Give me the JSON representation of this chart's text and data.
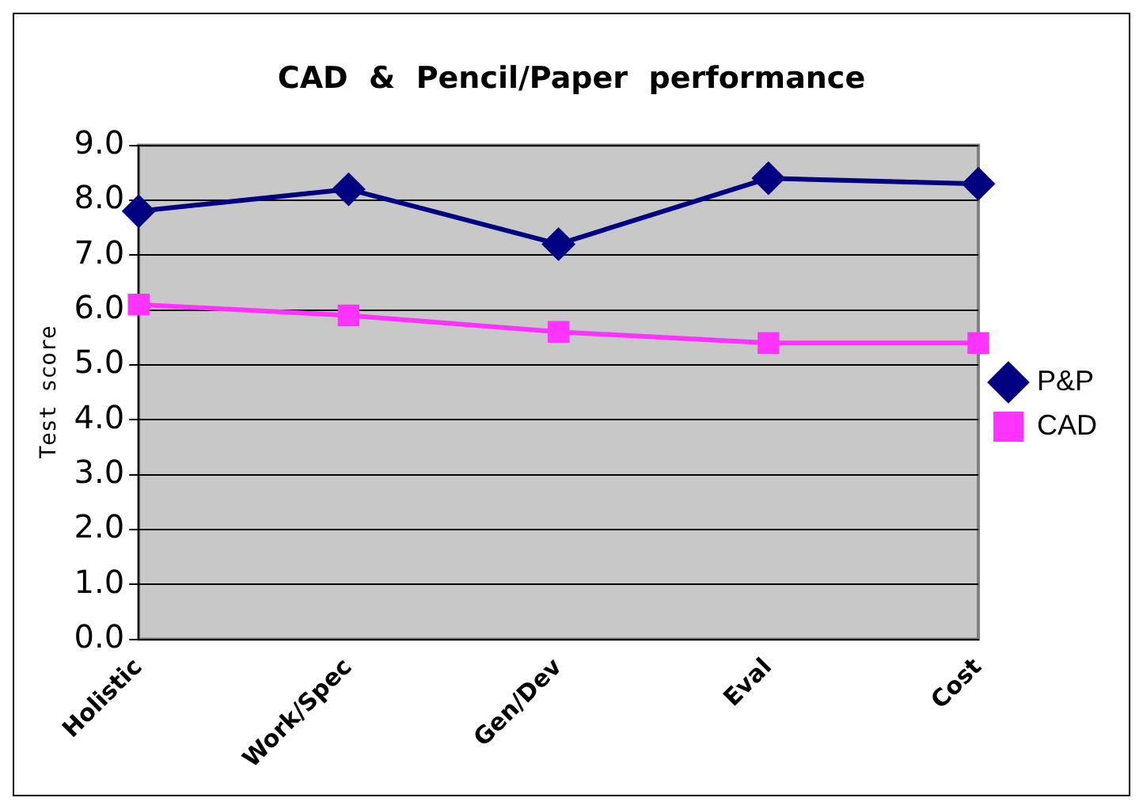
{
  "chart_data": {
    "type": "line",
    "title": "CAD  &  Pencil/Paper  performance",
    "ylabel": "Test score",
    "categories": [
      "Holistic",
      "Work/Spec",
      "Gen/Dev",
      "Eval",
      "Cost"
    ],
    "series": [
      {
        "name": "P&P",
        "color": "#000080",
        "values": [
          7.8,
          8.2,
          7.2,
          8.4,
          8.3
        ],
        "marker": "diamond"
      },
      {
        "name": "CAD",
        "color": "#ff33ff",
        "values": [
          6.1,
          5.9,
          5.6,
          5.4,
          5.4
        ],
        "marker": "square"
      }
    ],
    "ylim": [
      0,
      9
    ],
    "yticks": [
      {
        "value": 0,
        "label": "0.0"
      },
      {
        "value": 1,
        "label": "1.0"
      },
      {
        "value": 2,
        "label": "2.0"
      },
      {
        "value": 3,
        "label": "3.0"
      },
      {
        "value": 4,
        "label": "4.0"
      },
      {
        "value": 5,
        "label": "5.0"
      },
      {
        "value": 6,
        "label": "6.0"
      },
      {
        "value": 7,
        "label": "7.0"
      },
      {
        "value": 8,
        "label": "8.0"
      },
      {
        "value": 9,
        "label": "9.0"
      }
    ],
    "grid": "y",
    "legend": "right"
  }
}
